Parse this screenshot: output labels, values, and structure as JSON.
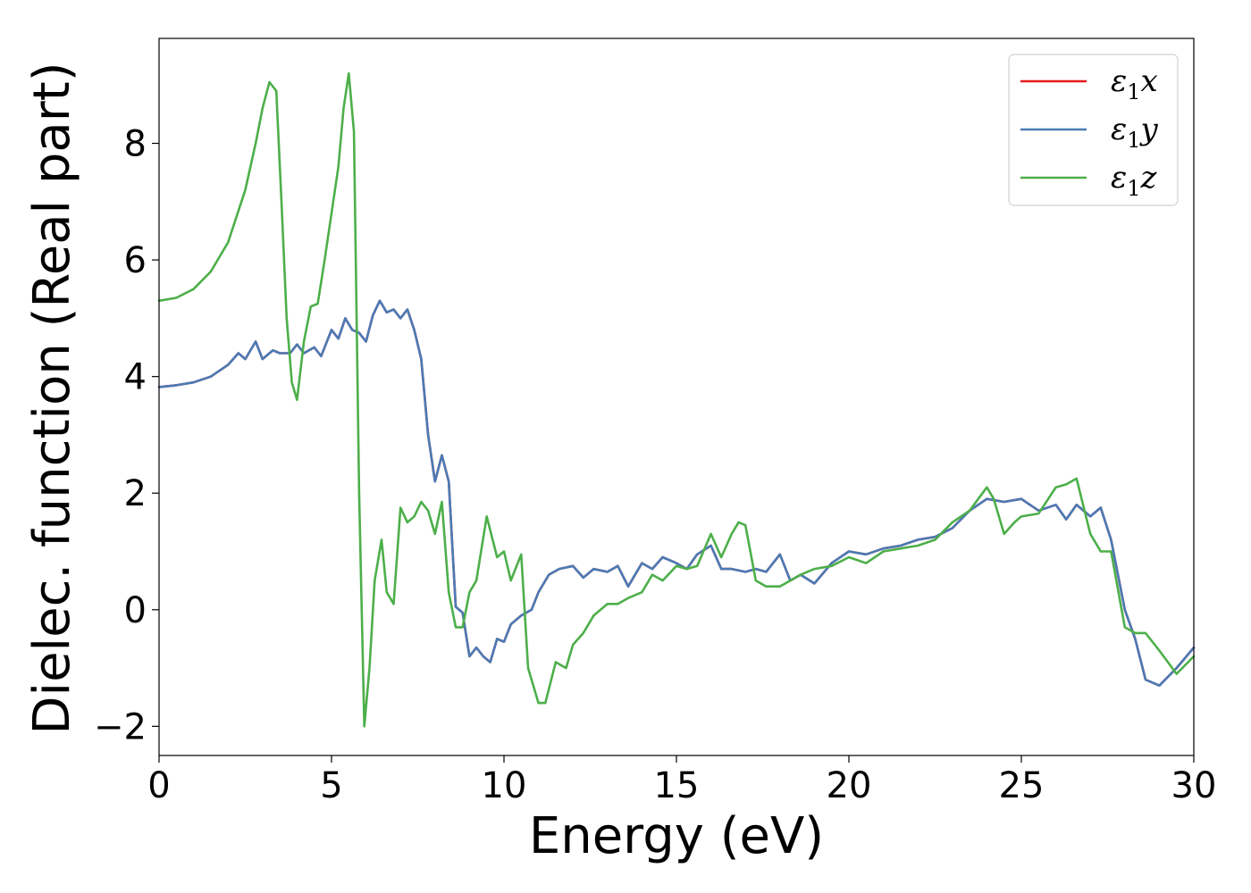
{
  "chart_data": {
    "type": "line",
    "title": "",
    "xlabel": "Energy (eV)",
    "ylabel": "Dielec. function (Real part)",
    "xlim": [
      0,
      30
    ],
    "ylim": [
      -2.5,
      9.8
    ],
    "x_ticks": [
      0,
      5,
      10,
      15,
      20,
      25,
      30
    ],
    "x_tick_labels": [
      "0",
      "5",
      "10",
      "15",
      "20",
      "25",
      "30"
    ],
    "y_ticks": [
      -2,
      0,
      2,
      4,
      6,
      8
    ],
    "y_tick_labels": [
      "−2",
      "0",
      "2",
      "4",
      "6",
      "8"
    ],
    "grid": false,
    "legend_position": "top-right",
    "series": [
      {
        "name": "ε",
        "name_sub": "1",
        "name_suffix": "x",
        "color": "#e41a1c",
        "x": [
          0,
          0.5,
          1.0,
          1.5,
          2.0,
          2.3,
          2.5,
          2.8,
          3.0,
          3.3,
          3.5,
          3.8,
          4.0,
          4.2,
          4.5,
          4.7,
          5.0,
          5.2,
          5.4,
          5.6,
          5.8,
          6.0,
          6.2,
          6.4,
          6.6,
          6.8,
          7.0,
          7.2,
          7.4,
          7.6,
          7.8,
          8.0,
          8.2,
          8.4,
          8.6,
          8.8,
          9.0,
          9.2,
          9.4,
          9.6,
          9.8,
          10.0,
          10.2,
          10.5,
          10.8,
          11.0,
          11.3,
          11.6,
          12.0,
          12.3,
          12.6,
          13.0,
          13.3,
          13.6,
          14.0,
          14.3,
          14.6,
          15.0,
          15.3,
          15.6,
          16.0,
          16.3,
          16.6,
          17.0,
          17.3,
          17.6,
          18.0,
          18.3,
          18.6,
          19.0,
          19.5,
          20.0,
          20.5,
          21.0,
          21.5,
          22.0,
          22.5,
          23.0,
          23.5,
          24.0,
          24.5,
          25.0,
          25.5,
          26.0,
          26.3,
          26.6,
          27.0,
          27.3,
          27.6,
          28.0,
          28.3,
          28.6,
          29.0,
          29.5,
          30.0
        ],
        "values": [
          3.82,
          3.85,
          3.9,
          4.0,
          4.2,
          4.4,
          4.3,
          4.6,
          4.3,
          4.45,
          4.4,
          4.4,
          4.55,
          4.4,
          4.5,
          4.35,
          4.8,
          4.65,
          5.0,
          4.8,
          4.75,
          4.6,
          5.05,
          5.3,
          5.1,
          5.15,
          5.0,
          5.15,
          4.8,
          4.3,
          3.0,
          2.2,
          2.65,
          2.2,
          0.05,
          -0.05,
          -0.8,
          -0.65,
          -0.8,
          -0.9,
          -0.5,
          -0.55,
          -0.25,
          -0.1,
          0.0,
          0.3,
          0.6,
          0.7,
          0.75,
          0.55,
          0.7,
          0.65,
          0.75,
          0.4,
          0.8,
          0.7,
          0.9,
          0.8,
          0.7,
          0.95,
          1.1,
          0.7,
          0.7,
          0.65,
          0.7,
          0.65,
          0.95,
          0.5,
          0.6,
          0.45,
          0.8,
          1.0,
          0.95,
          1.05,
          1.1,
          1.2,
          1.25,
          1.4,
          1.7,
          1.9,
          1.85,
          1.9,
          1.7,
          1.8,
          1.55,
          1.8,
          1.6,
          1.75,
          1.2,
          0.0,
          -0.5,
          -1.2,
          -1.3,
          -1.0,
          -0.65
        ]
      },
      {
        "name": "ε",
        "name_sub": "1",
        "name_suffix": "y",
        "color": "#4a7ab5",
        "x": [
          0,
          0.5,
          1.0,
          1.5,
          2.0,
          2.3,
          2.5,
          2.8,
          3.0,
          3.3,
          3.5,
          3.8,
          4.0,
          4.2,
          4.5,
          4.7,
          5.0,
          5.2,
          5.4,
          5.6,
          5.8,
          6.0,
          6.2,
          6.4,
          6.6,
          6.8,
          7.0,
          7.2,
          7.4,
          7.6,
          7.8,
          8.0,
          8.2,
          8.4,
          8.6,
          8.8,
          9.0,
          9.2,
          9.4,
          9.6,
          9.8,
          10.0,
          10.2,
          10.5,
          10.8,
          11.0,
          11.3,
          11.6,
          12.0,
          12.3,
          12.6,
          13.0,
          13.3,
          13.6,
          14.0,
          14.3,
          14.6,
          15.0,
          15.3,
          15.6,
          16.0,
          16.3,
          16.6,
          17.0,
          17.3,
          17.6,
          18.0,
          18.3,
          18.6,
          19.0,
          19.5,
          20.0,
          20.5,
          21.0,
          21.5,
          22.0,
          22.5,
          23.0,
          23.5,
          24.0,
          24.5,
          25.0,
          25.5,
          26.0,
          26.3,
          26.6,
          27.0,
          27.3,
          27.6,
          28.0,
          28.3,
          28.6,
          29.0,
          29.5,
          30.0
        ],
        "values": [
          3.82,
          3.85,
          3.9,
          4.0,
          4.2,
          4.4,
          4.3,
          4.6,
          4.3,
          4.45,
          4.4,
          4.4,
          4.55,
          4.4,
          4.5,
          4.35,
          4.8,
          4.65,
          5.0,
          4.8,
          4.75,
          4.6,
          5.05,
          5.3,
          5.1,
          5.15,
          5.0,
          5.15,
          4.8,
          4.3,
          3.0,
          2.2,
          2.65,
          2.2,
          0.05,
          -0.05,
          -0.8,
          -0.65,
          -0.8,
          -0.9,
          -0.5,
          -0.55,
          -0.25,
          -0.1,
          0.0,
          0.3,
          0.6,
          0.7,
          0.75,
          0.55,
          0.7,
          0.65,
          0.75,
          0.4,
          0.8,
          0.7,
          0.9,
          0.8,
          0.7,
          0.95,
          1.1,
          0.7,
          0.7,
          0.65,
          0.7,
          0.65,
          0.95,
          0.5,
          0.6,
          0.45,
          0.8,
          1.0,
          0.95,
          1.05,
          1.1,
          1.2,
          1.25,
          1.4,
          1.7,
          1.9,
          1.85,
          1.9,
          1.7,
          1.8,
          1.55,
          1.8,
          1.6,
          1.75,
          1.2,
          0.0,
          -0.5,
          -1.2,
          -1.3,
          -1.0,
          -0.65
        ]
      },
      {
        "name": "ε",
        "name_sub": "1",
        "name_suffix": "z",
        "color": "#4daf4a",
        "x": [
          0,
          0.5,
          1.0,
          1.5,
          2.0,
          2.5,
          2.8,
          3.0,
          3.2,
          3.4,
          3.55,
          3.7,
          3.85,
          4.0,
          4.2,
          4.4,
          4.6,
          4.8,
          5.0,
          5.2,
          5.35,
          5.5,
          5.65,
          5.8,
          5.95,
          6.1,
          6.25,
          6.45,
          6.6,
          6.8,
          7.0,
          7.2,
          7.4,
          7.6,
          7.8,
          8.0,
          8.2,
          8.4,
          8.6,
          8.8,
          9.0,
          9.2,
          9.5,
          9.8,
          10.0,
          10.2,
          10.5,
          10.7,
          11.0,
          11.2,
          11.5,
          11.8,
          12.0,
          12.3,
          12.6,
          13.0,
          13.3,
          13.6,
          14.0,
          14.3,
          14.6,
          15.0,
          15.3,
          15.6,
          16.0,
          16.3,
          16.6,
          16.8,
          17.0,
          17.3,
          17.6,
          18.0,
          18.3,
          18.6,
          19.0,
          19.5,
          20.0,
          20.5,
          21.0,
          21.5,
          22.0,
          22.5,
          23.0,
          23.5,
          24.0,
          24.2,
          24.5,
          24.8,
          25.0,
          25.5,
          26.0,
          26.3,
          26.6,
          27.0,
          27.3,
          27.6,
          28.0,
          28.3,
          28.6,
          29.0,
          29.5,
          30.0
        ],
        "values": [
          5.3,
          5.35,
          5.5,
          5.8,
          6.3,
          7.2,
          8.0,
          8.6,
          9.05,
          8.9,
          7.0,
          5.0,
          3.9,
          3.6,
          4.6,
          5.2,
          5.25,
          6.0,
          6.8,
          7.6,
          8.6,
          9.2,
          8.2,
          2.0,
          -2.0,
          -1.0,
          0.5,
          1.2,
          0.3,
          0.1,
          1.75,
          1.5,
          1.6,
          1.85,
          1.7,
          1.3,
          1.85,
          0.3,
          -0.3,
          -0.3,
          0.3,
          0.5,
          1.6,
          0.9,
          1.0,
          0.5,
          0.95,
          -1.0,
          -1.6,
          -1.6,
          -0.9,
          -1.0,
          -0.6,
          -0.4,
          -0.1,
          0.1,
          0.1,
          0.2,
          0.3,
          0.6,
          0.5,
          0.75,
          0.7,
          0.75,
          1.3,
          0.9,
          1.3,
          1.5,
          1.45,
          0.5,
          0.4,
          0.4,
          0.5,
          0.6,
          0.7,
          0.75,
          0.9,
          0.8,
          1.0,
          1.05,
          1.1,
          1.2,
          1.5,
          1.7,
          2.1,
          1.9,
          1.3,
          1.5,
          1.6,
          1.65,
          2.1,
          2.15,
          2.25,
          1.3,
          1.0,
          1.0,
          -0.3,
          -0.4,
          -0.4,
          -0.7,
          -1.1,
          -0.8
        ]
      }
    ]
  }
}
